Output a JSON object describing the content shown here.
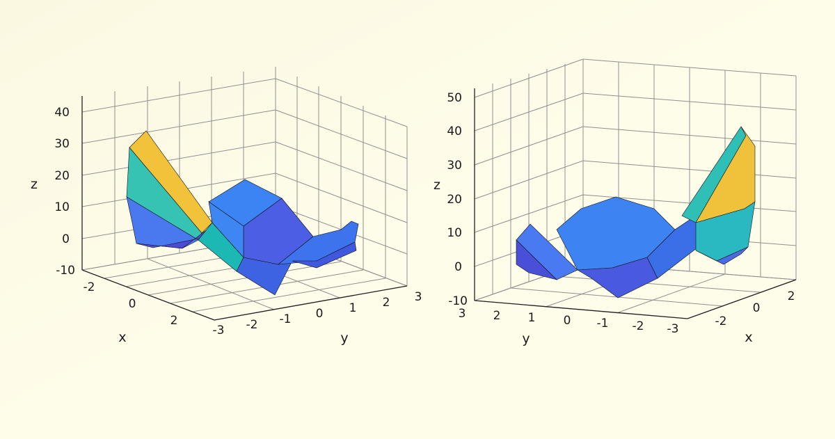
{
  "chart_data": [
    {
      "type": "surface",
      "view": "left",
      "xlabel": "x",
      "ylabel": "y",
      "zlabel": "z",
      "x_ticks": [
        "-2",
        "0",
        "2"
      ],
      "y_ticks": [
        "-3",
        "-2",
        "-1",
        "0",
        "1",
        "2",
        "3"
      ],
      "z_ticks": [
        "-10",
        "0",
        "10",
        "20",
        "30",
        "40"
      ],
      "xlim": [
        -3,
        3
      ],
      "ylim": [
        -3,
        3
      ],
      "zlim": [
        -10,
        40
      ],
      "grid": true,
      "colormap": "parula"
    },
    {
      "type": "surface",
      "view": "right",
      "xlabel": "x",
      "ylabel": "y",
      "zlabel": "z",
      "x_ticks": [
        "-2",
        "0",
        "2"
      ],
      "y_ticks": [
        "3",
        "2",
        "1",
        "0",
        "-1",
        "-2",
        "-3"
      ],
      "z_ticks": [
        "-10",
        "0",
        "10",
        "20",
        "30",
        "40",
        "50"
      ],
      "xlim": [
        -3,
        3
      ],
      "ylim": [
        -3,
        3
      ],
      "zlim": [
        -10,
        50
      ],
      "grid": true,
      "colormap": "parula"
    }
  ],
  "colors": {
    "background": "#fefde9",
    "parula_low": "#3e26a8",
    "parula_mid": "#24c4c0",
    "parula_high": "#f9fb0e"
  }
}
